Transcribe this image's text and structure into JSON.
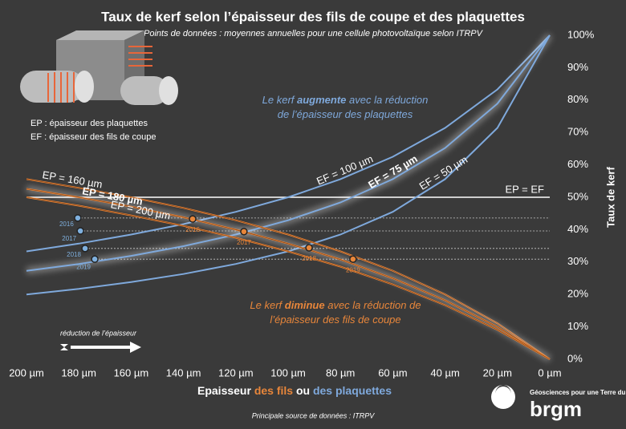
{
  "chart_data": {
    "type": "line",
    "title": "Taux de kerf selon l’épaisseur des fils de coupe et des plaquettes",
    "subtitle": "Points de données : moyennes annuelles pour une cellule photovoltaïque selon ITRPV",
    "x": [
      200,
      180,
      160,
      140,
      120,
      100,
      80,
      60,
      40,
      20,
      0
    ],
    "xlim": [
      200,
      0
    ],
    "xticks": [
      {
        "value": 200,
        "label": "200 µm"
      },
      {
        "value": 180,
        "label": "180 µm"
      },
      {
        "value": 160,
        "label": "160 µm"
      },
      {
        "value": 140,
        "label": "140 µm"
      },
      {
        "value": 120,
        "label": "120 µm"
      },
      {
        "value": 100,
        "label": "100 µm"
      },
      {
        "value": 80,
        "label": "80 µm"
      },
      {
        "value": 60,
        "label": "60 µm"
      },
      {
        "value": 40,
        "label": "40 µm"
      },
      {
        "value": 20,
        "label": "20 µm"
      },
      {
        "value": 0,
        "label": "0 µm"
      }
    ],
    "ylim": [
      0,
      100
    ],
    "yticks": [
      {
        "value": 0,
        "label": "0%"
      },
      {
        "value": 10,
        "label": "10%"
      },
      {
        "value": 20,
        "label": "20%"
      },
      {
        "value": 30,
        "label": "30%"
      },
      {
        "value": 40,
        "label": "40%"
      },
      {
        "value": 50,
        "label": "50%"
      },
      {
        "value": 60,
        "label": "60%"
      },
      {
        "value": 70,
        "label": "70%"
      },
      {
        "value": 80,
        "label": "80%"
      },
      {
        "value": 90,
        "label": "90%"
      },
      {
        "value": 100,
        "label": "100%"
      }
    ],
    "y_label": "Taux de kerf",
    "x_label_parts": [
      "Epaisseur ",
      "des fils",
      " ou ",
      "des plaquettes"
    ],
    "series": [
      {
        "name": "EF = 100 µm",
        "color": "#7fa9dc",
        "bold": false,
        "values": [
          33.3,
          35.7,
          38.5,
          41.7,
          45.5,
          50,
          55.6,
          62.5,
          71.4,
          83.3,
          100
        ]
      },
      {
        "name": "EF = 75 µm",
        "color": "#7fa9dc",
        "bold": true,
        "values": [
          27.3,
          29.4,
          31.9,
          34.9,
          38.5,
          42.9,
          48.4,
          55.6,
          65.2,
          78.9,
          100
        ]
      },
      {
        "name": "EF = 50 µm",
        "color": "#7fa9dc",
        "bold": false,
        "values": [
          20,
          21.7,
          23.8,
          26.3,
          29.4,
          33.3,
          38.5,
          45.5,
          55.6,
          71.4,
          100
        ]
      },
      {
        "name": "EP = 160 µm",
        "color": "#e8863a",
        "bold": false,
        "values": [
          55.6,
          52.9,
          50,
          46.7,
          42.9,
          38.5,
          33.3,
          27.3,
          20,
          11.1,
          0
        ]
      },
      {
        "name": "EP = 180 µm",
        "color": "#e8863a",
        "bold": true,
        "values": [
          52.6,
          50,
          47.1,
          43.8,
          40,
          35.7,
          30.8,
          25,
          18.2,
          10,
          0
        ]
      },
      {
        "name": "EP = 200 µm",
        "color": "#e8863a",
        "bold": false,
        "values": [
          50,
          47.4,
          44.4,
          41.2,
          37.5,
          33.3,
          28.6,
          23.1,
          16.7,
          9.1,
          0
        ]
      }
    ],
    "reference_line": {
      "value": 50,
      "label": "EP = EF"
    },
    "wafer_points": {
      "color": "#7fb0de",
      "labels": [
        "2016",
        "2017",
        "2018",
        "2019"
      ],
      "x": [
        180.4,
        179.4,
        177.6,
        173.9
      ],
      "values": [
        43.6,
        39.6,
        34.2,
        30.9
      ]
    },
    "wire_points": {
      "color": "#e8863a",
      "labels": [
        "2016",
        "2017",
        "2018",
        "2019"
      ],
      "x": [
        136.5,
        116.9,
        92,
        75.2
      ],
      "values": [
        43.3,
        39.4,
        34.4,
        30.9
      ]
    },
    "annotations": {
      "kerf_up": [
        [
          "Le kerf ",
          "augmente",
          " avec la réduction"
        ],
        [
          "de l’épaisseur des plaquettes"
        ]
      ],
      "kerf_down": [
        [
          "Le kerf ",
          "diminue",
          " avec la réduction de"
        ],
        [
          "l’épaisseur des fils de coupe"
        ]
      ],
      "legend": [
        "EP : épaisseur des plaquettes",
        "EF : épaisseur des fils de coupe"
      ],
      "arrow": "réduction de l’épaisseur",
      "source": "Principale source de données : ITRPV",
      "logo": "brgm",
      "tagline": "Géosciences pour une Terre durable"
    }
  }
}
